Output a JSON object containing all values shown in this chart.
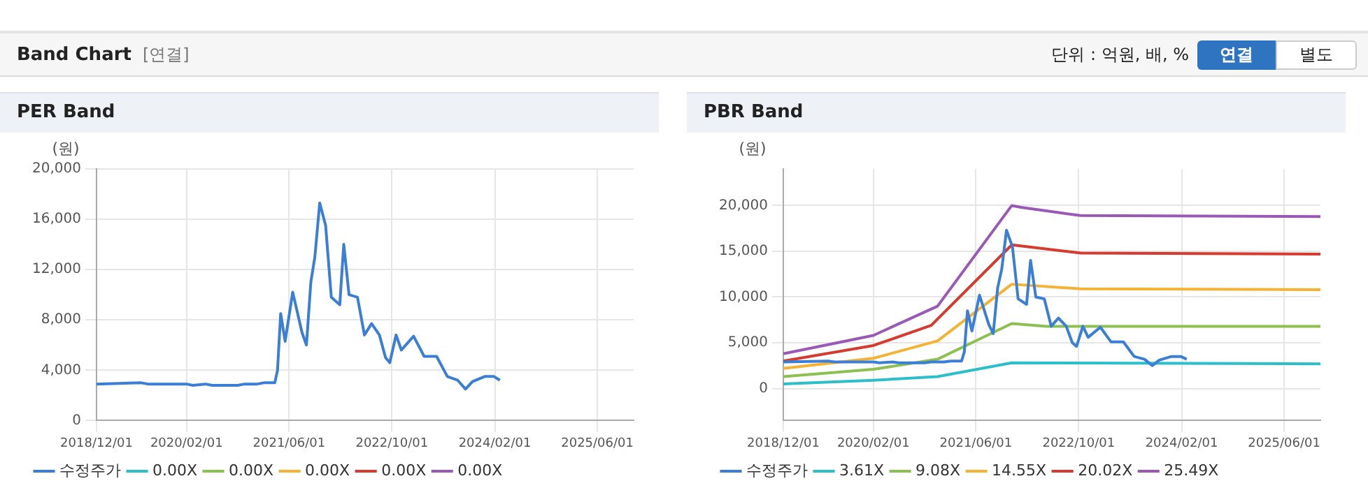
{
  "chart_data": [
    {
      "type": "line",
      "title": "PER Band",
      "ylabel": "(원)",
      "annotations": [
        "Band Chart",
        "[연결]",
        "단위 : 억원, 배, %",
        "연결",
        "별도"
      ],
      "xlim": [
        "2018-12-01",
        "2025-11-20"
      ],
      "xticks": [
        {
          "value": "2018-12-01",
          "label": "2018/12/01"
        },
        {
          "value": "2020-02-01",
          "label": "2020/02/01"
        },
        {
          "value": "2021-06-01",
          "label": "2021/06/01"
        },
        {
          "value": "2022-10-01",
          "label": "2022/10/01"
        },
        {
          "value": "2024-02-01",
          "label": "2024/02/01"
        },
        {
          "value": "2025-06-01",
          "label": "2025/06/01"
        }
      ],
      "ylim": [
        0,
        20000
      ],
      "yticks": [
        0,
        {
          "value": 4000,
          "label": "4,000"
        },
        {
          "value": 8000,
          "label": "8,000"
        },
        {
          "value": 12000,
          "label": "12,000"
        },
        {
          "value": 16000,
          "label": "16,000"
        },
        {
          "value": 20000,
          "label": "20,000"
        }
      ],
      "grid": true,
      "legend": "bottom",
      "series": [
        {
          "name": "수정주가",
          "color": "#3a7fd5",
          "x": [
            "2018-12-01",
            "2019-07-01",
            "2019-08-01",
            "2020-02-01",
            "2020-03-01",
            "2020-05-01",
            "2020-06-01",
            "2020-10-01",
            "2020-11-01",
            "2021-01-01",
            "2021-02-01",
            "2021-03-25",
            "2021-04-07",
            "2021-04-22",
            "2021-05-13",
            "2021-06-18",
            "2021-08-01",
            "2021-08-22",
            "2021-09-12",
            "2021-10-01",
            "2021-10-24",
            "2021-11-21",
            "2021-12-18",
            "2022-01-27",
            "2022-02-15",
            "2022-03-12",
            "2022-04-21",
            "2022-05-24",
            "2022-06-27",
            "2022-08-03",
            "2022-09-01",
            "2022-09-21",
            "2022-10-21",
            "2022-11-15",
            "2023-01-12",
            "2023-03-03",
            "2023-05-01",
            "2023-06-21",
            "2023-08-09",
            "2023-09-15",
            "2023-10-18",
            "2023-12-15",
            "2024-01-28",
            "2024-02-25"
          ],
          "values": [
            2900,
            3000,
            2900,
            2900,
            2800,
            2900,
            2800,
            2800,
            2900,
            2900,
            3000,
            3000,
            4000,
            8500,
            6300,
            10200,
            7000,
            6000,
            11000,
            13000,
            17300,
            15500,
            9800,
            9200,
            14000,
            10000,
            9800,
            6800,
            7700,
            6800,
            5000,
            4600,
            6800,
            5600,
            6700,
            5100,
            5100,
            3500,
            3200,
            2500,
            3100,
            3500,
            3500,
            3200
          ]
        },
        {
          "name": "0.00X",
          "color": "#2cbfc9"
        },
        {
          "name": "0.00X",
          "color": "#8cc152"
        },
        {
          "name": "0.00X",
          "color": "#f5b335"
        },
        {
          "name": "0.00X",
          "color": "#d63b30"
        },
        {
          "name": "0.00X",
          "color": "#9b59b6"
        }
      ]
    },
    {
      "type": "line",
      "title": "PBR Band",
      "ylabel": "(원)",
      "xlim": [
        "2018-12-01",
        "2025-11-20"
      ],
      "xticks": [
        {
          "value": "2018-12-01",
          "label": "2018/12/01"
        },
        {
          "value": "2020-02-01",
          "label": "2020/02/01"
        },
        {
          "value": "2021-06-01",
          "label": "2021/06/01"
        },
        {
          "value": "2022-10-01",
          "label": "2022/10/01"
        },
        {
          "value": "2024-02-01",
          "label": "2024/02/01"
        },
        {
          "value": "2025-06-01",
          "label": "2025/06/01"
        }
      ],
      "ylim": [
        -3500,
        24000
      ],
      "yticks": [
        0,
        {
          "value": 5000,
          "label": "5,000"
        },
        {
          "value": 10000,
          "label": "10,000"
        },
        {
          "value": 15000,
          "label": "15,000"
        },
        {
          "value": 20000,
          "label": "20,000"
        }
      ],
      "grid": true,
      "legend": "bottom",
      "series": [
        {
          "name": "수정주가",
          "color": "#3a7fd5",
          "x": [
            "2018-12-01",
            "2019-07-01",
            "2019-08-01",
            "2020-02-01",
            "2020-03-01",
            "2020-05-01",
            "2020-06-01",
            "2020-10-01",
            "2020-11-01",
            "2021-01-01",
            "2021-02-01",
            "2021-03-25",
            "2021-04-07",
            "2021-04-22",
            "2021-05-13",
            "2021-06-18",
            "2021-08-01",
            "2021-08-22",
            "2021-09-12",
            "2021-10-01",
            "2021-10-24",
            "2021-11-21",
            "2021-12-18",
            "2022-01-27",
            "2022-02-15",
            "2022-03-12",
            "2022-04-21",
            "2022-05-24",
            "2022-06-27",
            "2022-08-03",
            "2022-09-01",
            "2022-09-21",
            "2022-10-21",
            "2022-11-15",
            "2023-01-12",
            "2023-03-03",
            "2023-05-01",
            "2023-06-21",
            "2023-08-09",
            "2023-09-15",
            "2023-10-18",
            "2023-12-15",
            "2024-01-28",
            "2024-02-25"
          ],
          "values": [
            2900,
            3000,
            2900,
            2900,
            2800,
            2900,
            2800,
            2800,
            2900,
            2900,
            3000,
            3000,
            4000,
            8500,
            6300,
            10200,
            7000,
            6000,
            11000,
            13000,
            17300,
            15500,
            9800,
            9200,
            14000,
            10000,
            9800,
            6800,
            7700,
            6800,
            5000,
            4600,
            6800,
            5600,
            6700,
            5100,
            5100,
            3500,
            3200,
            2500,
            3100,
            3500,
            3500,
            3200
          ]
        },
        {
          "name": "3.61X",
          "color": "#2cbfc9",
          "x": [
            "2018-12-01",
            "2020-02-01",
            "2020-12-01",
            "2021-11-18",
            "2025-11-20"
          ],
          "values": [
            500,
            900,
            1300,
            2800,
            2700
          ]
        },
        {
          "name": "9.08X",
          "color": "#8cc152",
          "x": [
            "2018-12-01",
            "2020-02-01",
            "2020-12-01",
            "2021-11-18",
            "2022-05-01",
            "2025-11-20"
          ],
          "values": [
            1300,
            2100,
            3200,
            7100,
            6800,
            6800
          ]
        },
        {
          "name": "14.55X",
          "color": "#f5b335",
          "x": [
            "2018-12-01",
            "2020-02-01",
            "2020-12-01",
            "2021-11-18",
            "2022-10-10",
            "2025-11-20"
          ],
          "values": [
            2200,
            3300,
            5200,
            11400,
            10900,
            10800
          ]
        },
        {
          "name": "20.02X",
          "color": "#d63b30",
          "x": [
            "2018-12-01",
            "2020-02-01",
            "2020-11-01",
            "2021-11-18",
            "2022-10-10",
            "2025-11-20"
          ],
          "values": [
            3000,
            4700,
            6900,
            15700,
            14800,
            14700
          ]
        },
        {
          "name": "25.49X",
          "color": "#9b59b6",
          "x": [
            "2018-12-01",
            "2020-02-01",
            "2020-12-01",
            "2021-11-18",
            "2022-01-01",
            "2022-10-10",
            "2025-11-20"
          ],
          "values": [
            3800,
            5800,
            9000,
            20000,
            19800,
            18900,
            18800
          ]
        }
      ]
    }
  ]
}
